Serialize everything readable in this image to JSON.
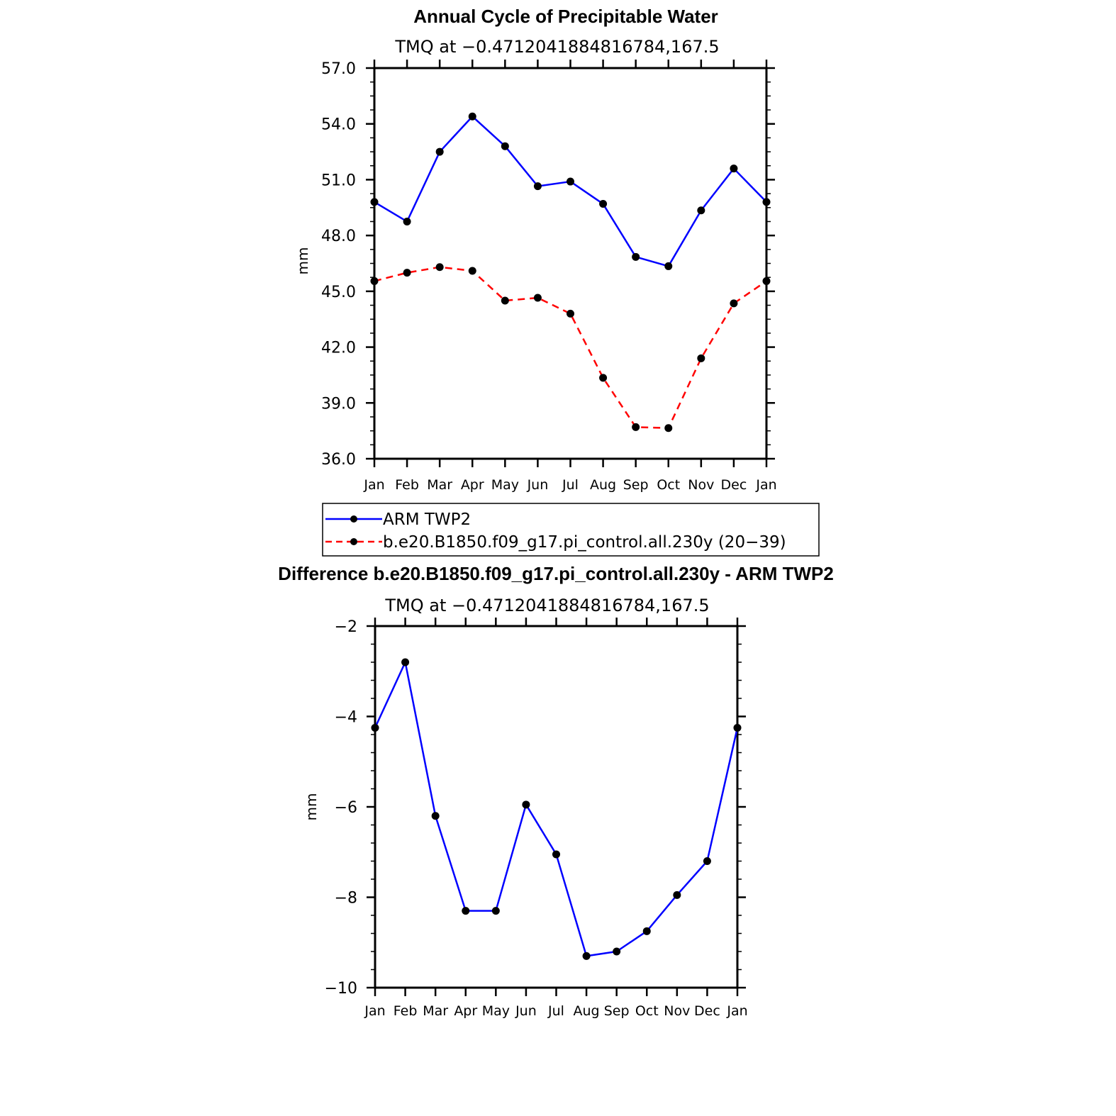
{
  "chart_data": [
    {
      "type": "line",
      "title": "Annual Cycle of Precipitable Water",
      "subtitle": "TMQ at −0.4712041884816784,167.5",
      "ylabel": "mm",
      "xlabel": "",
      "ylim": [
        36.0,
        57.0
      ],
      "yticks": [
        "36.0",
        "39.0",
        "42.0",
        "45.0",
        "48.0",
        "51.0",
        "54.0",
        "57.0"
      ],
      "categories": [
        "Jan",
        "Feb",
        "Mar",
        "Apr",
        "May",
        "Jun",
        "Jul",
        "Aug",
        "Sep",
        "Oct",
        "Nov",
        "Dec",
        "Jan"
      ],
      "series": [
        {
          "name": "ARM TWP2",
          "color": "#0000ff",
          "dash": "solid",
          "values": [
            49.8,
            48.75,
            52.5,
            54.4,
            52.8,
            50.65,
            50.9,
            49.7,
            46.85,
            46.35,
            49.35,
            51.6,
            49.8
          ]
        },
        {
          "name": "b.e20.B1850.f09_g17.pi_control.all.230y (20−39)",
          "color": "#ff0000",
          "dash": "dashed",
          "values": [
            45.55,
            46.0,
            46.3,
            46.1,
            44.5,
            44.65,
            43.8,
            40.35,
            37.7,
            37.65,
            41.4,
            44.35,
            45.55
          ]
        }
      ],
      "legend": "below"
    },
    {
      "type": "line",
      "title": "Difference b.e20.B1850.f09_g17.pi_control.all.230y - ARM TWP2",
      "subtitle": "TMQ at −0.4712041884816784,167.5",
      "ylabel": "mm",
      "xlabel": "",
      "ylim": [
        -10,
        -2
      ],
      "yticks": [
        "−10",
        "−8",
        "−6",
        "−4",
        "−2"
      ],
      "categories": [
        "Jan",
        "Feb",
        "Mar",
        "Apr",
        "May",
        "Jun",
        "Jul",
        "Aug",
        "Sep",
        "Oct",
        "Nov",
        "Dec",
        "Jan"
      ],
      "series": [
        {
          "name": "Difference",
          "color": "#0000ff",
          "dash": "solid",
          "values": [
            -4.25,
            -2.8,
            -6.2,
            -8.3,
            -8.3,
            -5.95,
            -7.05,
            -9.3,
            -9.2,
            -8.75,
            -7.95,
            -7.2,
            -4.25
          ]
        }
      ]
    }
  ]
}
